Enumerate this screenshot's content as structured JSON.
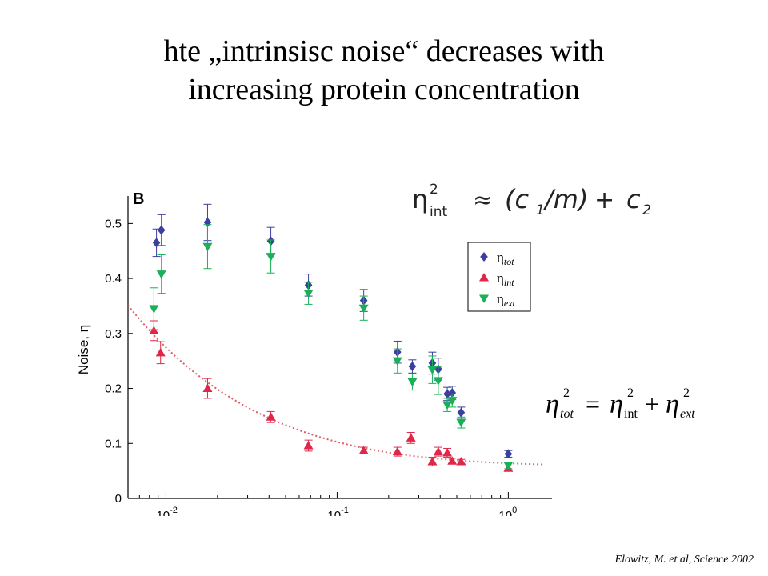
{
  "slide": {
    "title_line1": "hte „intrinsisc noise“ decreases with",
    "title_line2": "increasing protein concentration",
    "citation": "Elowitz, M. et al, Science 2002",
    "panel_letter": "B"
  },
  "formula_top": {
    "lhs": "η",
    "lhs_sup": "2",
    "lhs_sub": "int",
    "approx": "≈",
    "term1": "(c",
    "term1_sub": "1",
    "term1_rest": "/m)",
    "plus": "+",
    "term2": "c",
    "term2_sub": "2"
  },
  "formula_right": {
    "a": "η",
    "a_sub": "tot",
    "a_sup": "2",
    "eq": "=",
    "b": "η",
    "b_sub": "int",
    "b_sup": "2",
    "plus": "+",
    "c": "η",
    "c_sub": "ext",
    "c_sup": "2"
  },
  "chart_data": {
    "type": "scatter",
    "xscale": "log",
    "xlim": [
      0.006,
      1.8
    ],
    "ylim": [
      0,
      0.55
    ],
    "ylabel": "Noise, η",
    "xlabel": "",
    "yticks": [
      "0",
      "0.1",
      "0.2",
      "0.3",
      "0.4",
      "0.5"
    ],
    "xticks": [
      {
        "base": "10",
        "exp": "-2",
        "value": 0.01
      },
      {
        "base": "10",
        "exp": "-1",
        "value": 0.1
      },
      {
        "base": "10",
        "exp": "0",
        "value": 1
      }
    ],
    "grid": false,
    "legend_position": "top-right",
    "fit_curve": {
      "style": "dotted",
      "color": "#e05a68"
    },
    "series": [
      {
        "name": "η",
        "name_sub": "tot",
        "marker": "diamond",
        "color": "#3b3f9e",
        "points": [
          {
            "x": 0.0088,
            "y": 0.465,
            "err": 0.025
          },
          {
            "x": 0.0094,
            "y": 0.488,
            "err": 0.028
          },
          {
            "x": 0.0175,
            "y": 0.502,
            "err": 0.033
          },
          {
            "x": 0.041,
            "y": 0.468,
            "err": 0.025
          },
          {
            "x": 0.068,
            "y": 0.388,
            "err": 0.02
          },
          {
            "x": 0.143,
            "y": 0.36,
            "err": 0.02
          },
          {
            "x": 0.225,
            "y": 0.266,
            "err": 0.02
          },
          {
            "x": 0.275,
            "y": 0.24,
            "err": 0.012
          },
          {
            "x": 0.36,
            "y": 0.246,
            "err": 0.02
          },
          {
            "x": 0.39,
            "y": 0.235,
            "err": 0.02
          },
          {
            "x": 0.44,
            "y": 0.19,
            "err": 0.012
          },
          {
            "x": 0.47,
            "y": 0.192,
            "err": 0.012
          },
          {
            "x": 0.53,
            "y": 0.156,
            "err": 0.01
          },
          {
            "x": 1.0,
            "y": 0.081,
            "err": 0.006
          }
        ]
      },
      {
        "name": "η",
        "name_sub": "int",
        "marker": "triangle-up",
        "color": "#e0274a",
        "points": [
          {
            "x": 0.0085,
            "y": 0.305,
            "err": 0.018
          },
          {
            "x": 0.0093,
            "y": 0.265,
            "err": 0.02
          },
          {
            "x": 0.0175,
            "y": 0.2,
            "err": 0.018
          },
          {
            "x": 0.041,
            "y": 0.148,
            "err": 0.01
          },
          {
            "x": 0.068,
            "y": 0.096,
            "err": 0.01
          },
          {
            "x": 0.143,
            "y": 0.087,
            "err": 0.006
          },
          {
            "x": 0.225,
            "y": 0.085,
            "err": 0.008
          },
          {
            "x": 0.27,
            "y": 0.11,
            "err": 0.01
          },
          {
            "x": 0.36,
            "y": 0.067,
            "err": 0.008
          },
          {
            "x": 0.39,
            "y": 0.085,
            "err": 0.008
          },
          {
            "x": 0.44,
            "y": 0.083,
            "err": 0.008
          },
          {
            "x": 0.47,
            "y": 0.068,
            "err": 0.005
          },
          {
            "x": 0.53,
            "y": 0.067,
            "err": 0.004
          },
          {
            "x": 1.0,
            "y": 0.055,
            "err": 0.004
          }
        ]
      },
      {
        "name": "η",
        "name_sub": "ext",
        "marker": "triangle-down",
        "color": "#18b157",
        "points": [
          {
            "x": 0.0085,
            "y": 0.345,
            "err": 0.038
          },
          {
            "x": 0.0094,
            "y": 0.408,
            "err": 0.035
          },
          {
            "x": 0.0175,
            "y": 0.458,
            "err": 0.04
          },
          {
            "x": 0.041,
            "y": 0.44,
            "err": 0.03
          },
          {
            "x": 0.068,
            "y": 0.373,
            "err": 0.02
          },
          {
            "x": 0.143,
            "y": 0.346,
            "err": 0.022
          },
          {
            "x": 0.225,
            "y": 0.25,
            "err": 0.022
          },
          {
            "x": 0.275,
            "y": 0.212,
            "err": 0.015
          },
          {
            "x": 0.36,
            "y": 0.234,
            "err": 0.025
          },
          {
            "x": 0.39,
            "y": 0.214,
            "err": 0.025
          },
          {
            "x": 0.44,
            "y": 0.17,
            "err": 0.012
          },
          {
            "x": 0.47,
            "y": 0.178,
            "err": 0.012
          },
          {
            "x": 0.53,
            "y": 0.138,
            "err": 0.01
          },
          {
            "x": 1.0,
            "y": 0.06,
            "err": 0.006
          }
        ]
      }
    ]
  }
}
